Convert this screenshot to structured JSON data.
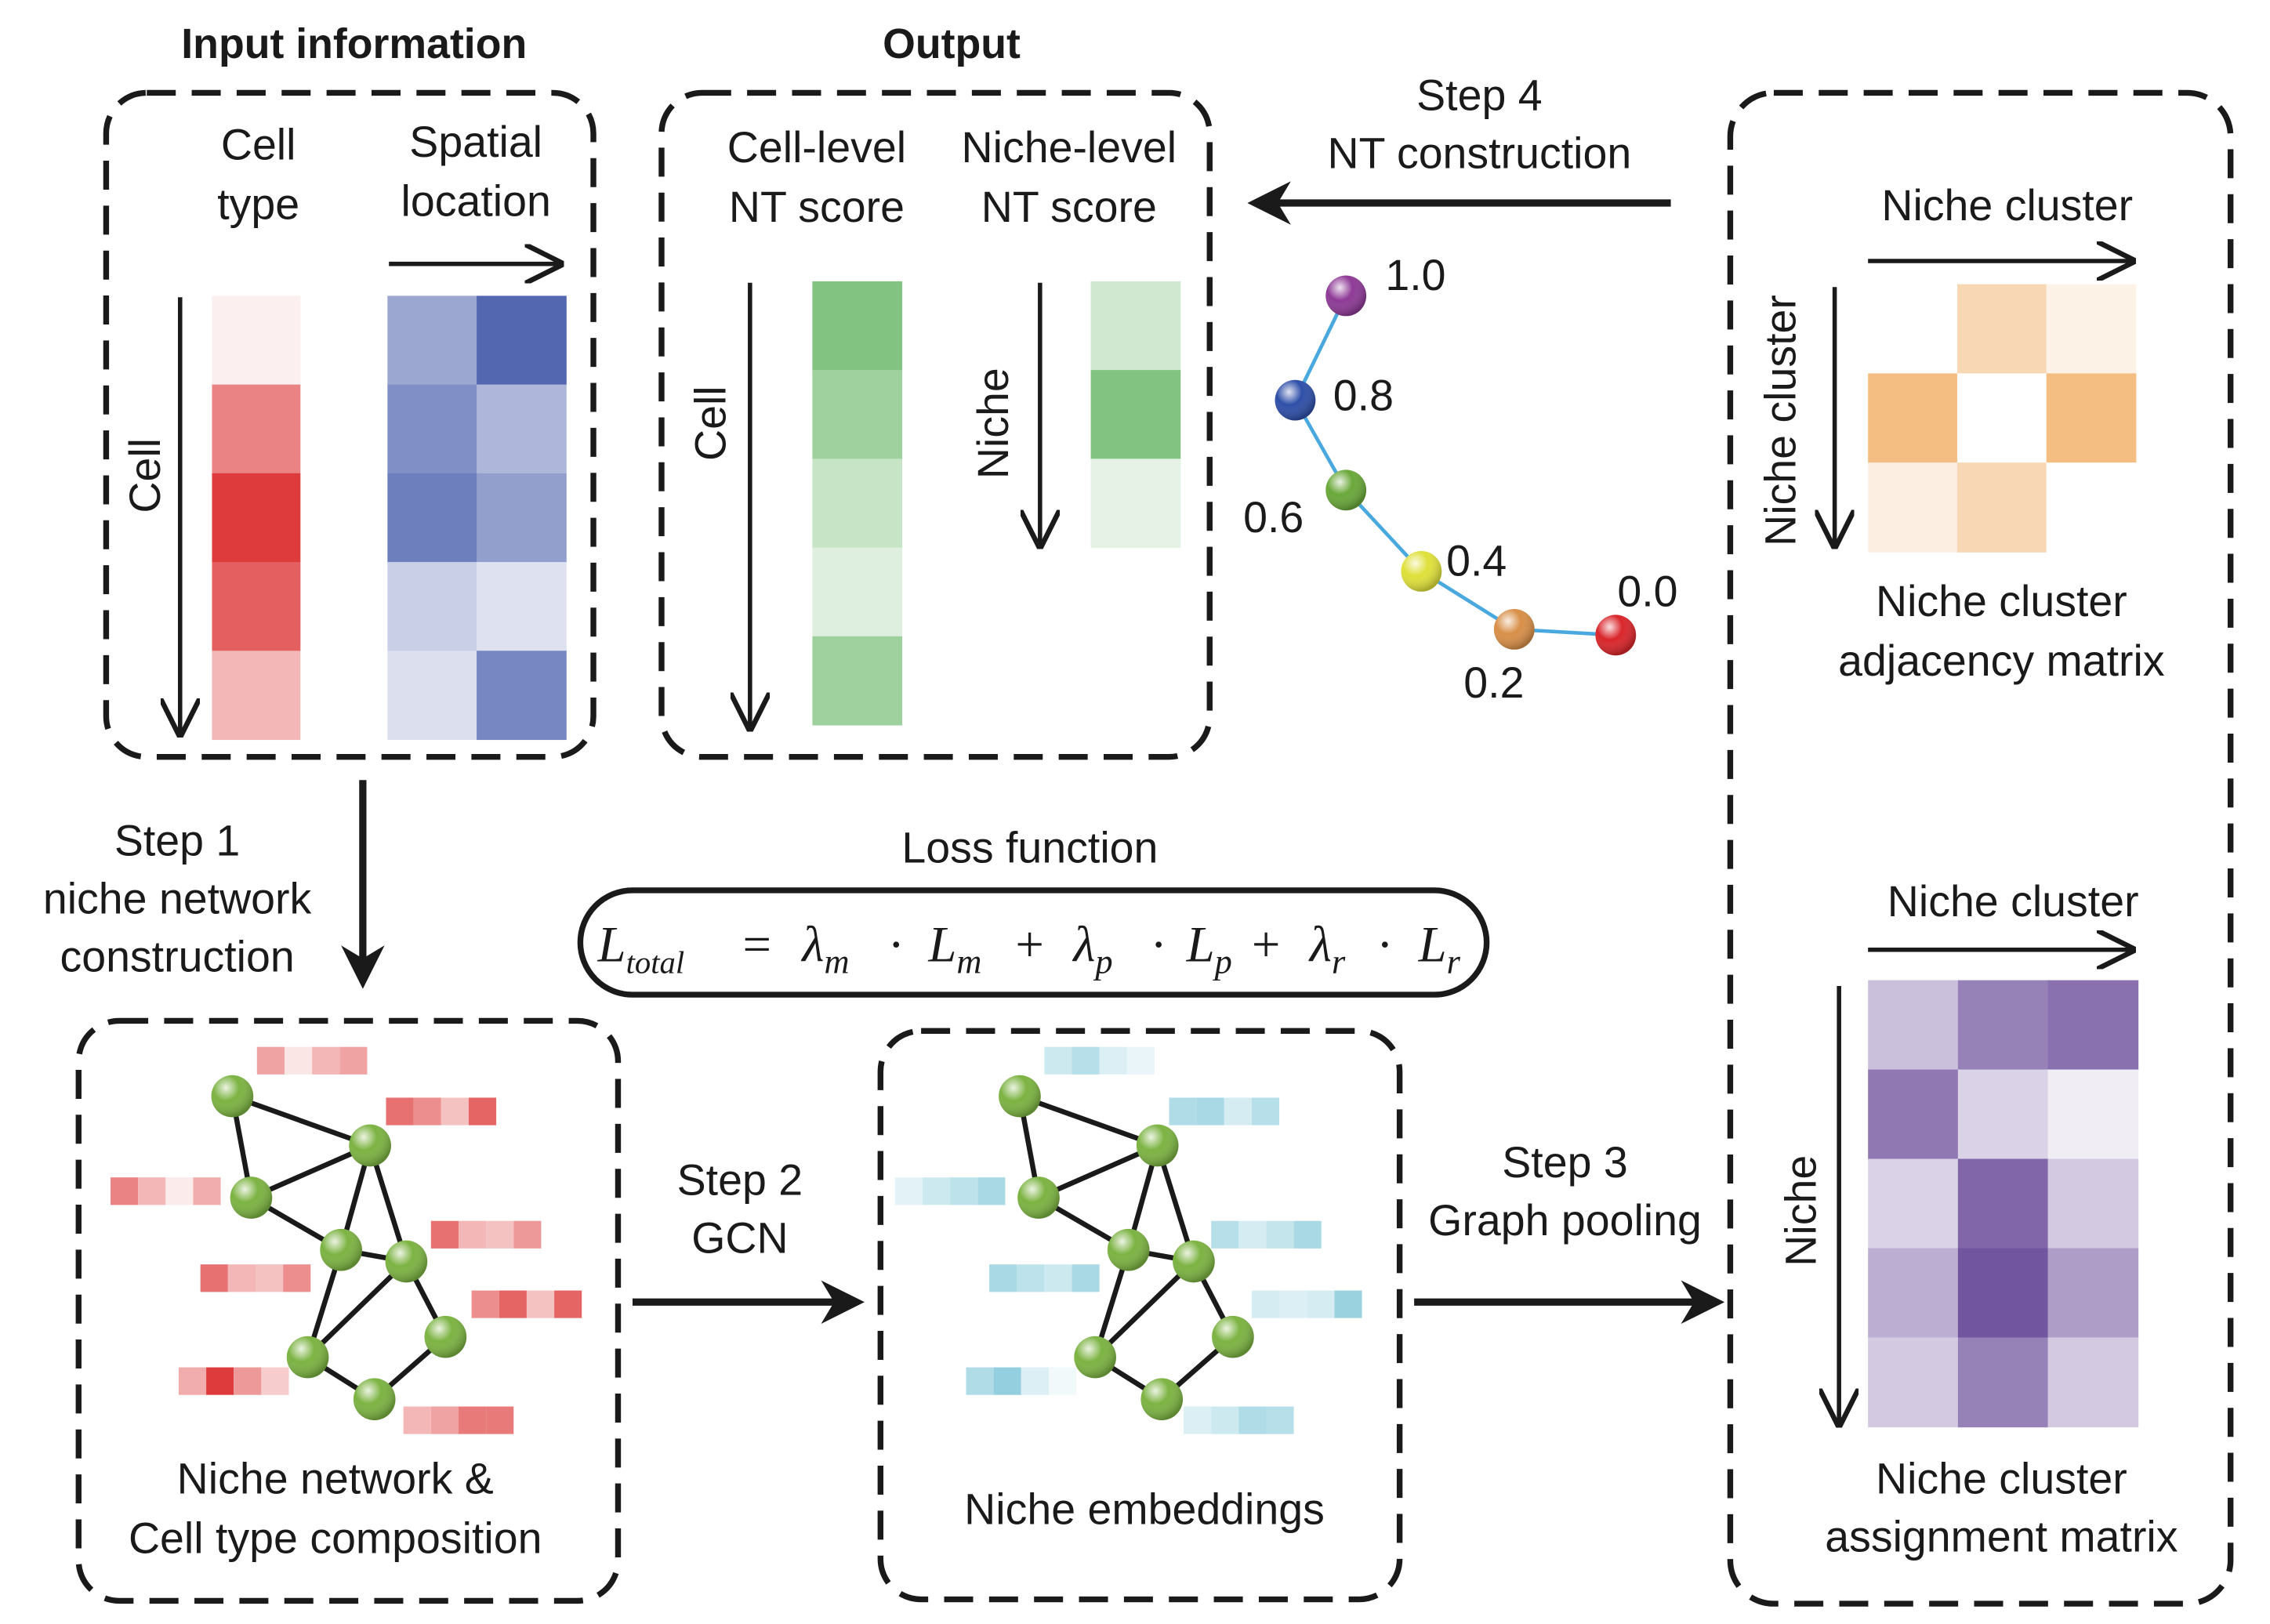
{
  "colors": {
    "red": "#dc3232",
    "blue": "#4a5fac",
    "green": "#6cb86c",
    "orange": "#f0a858",
    "purple": "#6b4c9a",
    "cyan": "#6fbfd3",
    "node_green": "#7cb342",
    "ink": "#1a1a1a"
  },
  "input": {
    "title": "Input information",
    "cell_type_label": [
      "Cell",
      "type"
    ],
    "spatial_label": [
      "Spatial",
      "location"
    ],
    "cell_axis": "Cell",
    "cell_type_intensity": [
      0.08,
      0.6,
      0.95,
      0.78,
      0.35
    ],
    "spatial_intensity": [
      [
        0.55,
        0.95
      ],
      [
        0.7,
        0.45
      ],
      [
        0.8,
        0.6
      ],
      [
        0.3,
        0.18
      ],
      [
        0.2,
        0.75
      ]
    ]
  },
  "output": {
    "title": "Output",
    "cell_level_label": [
      "Cell-level",
      "NT score"
    ],
    "niche_level_label": [
      "Niche-level",
      "NT score"
    ],
    "cell_axis": "Cell",
    "niche_axis": "Niche",
    "cell_scores": [
      0.85,
      0.65,
      0.38,
      0.22,
      0.65
    ],
    "niche_scores": [
      0.32,
      0.85,
      0.18
    ]
  },
  "step4": {
    "label": [
      "Step 4",
      "NT construction"
    ],
    "trajectory": [
      {
        "value": 1.0,
        "label": "1.0",
        "color": "#8e3a96"
      },
      {
        "value": 0.8,
        "label": "0.8",
        "color": "#2f4fa8"
      },
      {
        "value": 0.6,
        "label": "0.6",
        "color": "#6aa83a"
      },
      {
        "value": 0.4,
        "label": "0.4",
        "color": "#dfe03a"
      },
      {
        "value": 0.2,
        "label": "0.2",
        "color": "#d88f48"
      },
      {
        "value": 0.0,
        "label": "0.0",
        "color": "#d9262b"
      }
    ]
  },
  "adjacency": {
    "axis_top": "Niche cluster",
    "axis_left": "Niche cluster",
    "caption": [
      "Niche cluster",
      "adjacency matrix"
    ],
    "matrix": [
      [
        0.0,
        0.45,
        0.15
      ],
      [
        0.75,
        0.0,
        0.75
      ],
      [
        0.18,
        0.45,
        0.0
      ]
    ]
  },
  "step1": {
    "label": [
      "Step 1",
      "niche network",
      "construction"
    ]
  },
  "loss": {
    "title": "Loss function",
    "L": "L",
    "total": "total",
    "eq": "=",
    "lambda": "λ",
    "m": "m",
    "p": "p",
    "r": "r",
    "dot": "·",
    "plus": "+"
  },
  "niche_network": {
    "caption": [
      "Niche network &",
      "Cell type composition"
    ]
  },
  "step2": {
    "label": [
      "Step 2",
      "GCN"
    ]
  },
  "embeddings": {
    "caption": "Niche embeddings"
  },
  "step3": {
    "label": [
      "Step 3",
      "Graph pooling"
    ]
  },
  "assignment": {
    "axis_top": "Niche cluster",
    "axis_left": "Niche",
    "caption": [
      "Niche cluster",
      "assignment matrix"
    ],
    "matrix": [
      [
        0.35,
        0.7,
        0.8
      ],
      [
        0.75,
        0.25,
        0.1
      ],
      [
        0.25,
        0.85,
        0.3
      ],
      [
        0.45,
        0.95,
        0.55
      ],
      [
        0.3,
        0.7,
        0.3
      ]
    ]
  }
}
